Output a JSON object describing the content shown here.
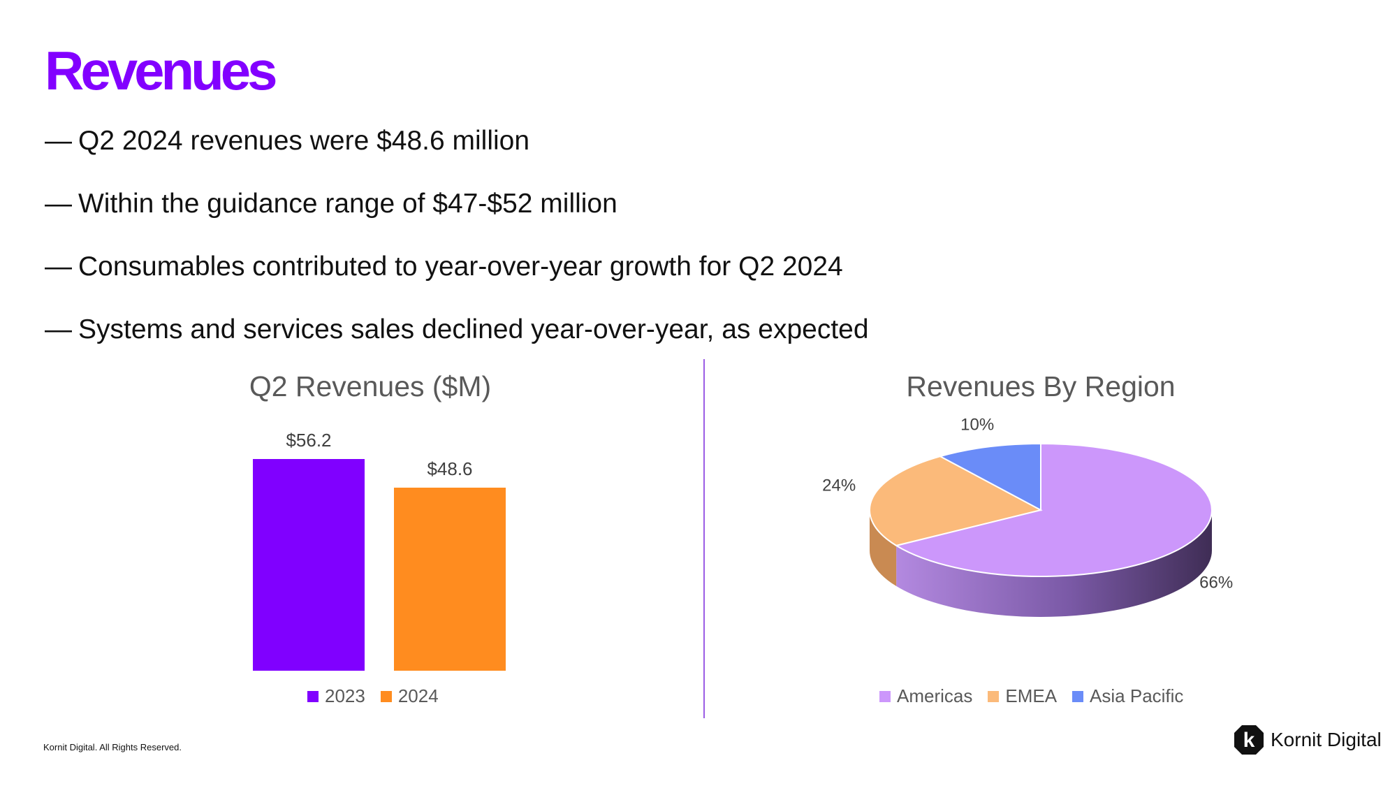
{
  "slide": {
    "title": "Revenues",
    "bullets": [
      "Q2 2024 revenues were $48.6 million",
      "Within the guidance range of $47-$52 million",
      "Consumables contributed to year-over-year growth for Q2 2024",
      "Systems and services sales declined year-over-year, as expected"
    ],
    "bullet_marker": "—",
    "footer": "Kornit Digital. All Rights Reserved.",
    "logo_text": "Kornit Digital",
    "logo_mark": "k"
  },
  "colors": {
    "title": "#8200ff",
    "divider": "#9b5de5",
    "bar_2023": "#8000ff",
    "bar_2024": "#ff8c1f",
    "americas": "#cc97fb",
    "emea": "#fbba7a",
    "asia_pacific": "#6a8cf8"
  },
  "chart_data": [
    {
      "type": "bar",
      "title": "Q2 Revenues ($M)",
      "categories": [
        "2023",
        "2024"
      ],
      "values": [
        56.2,
        48.6
      ],
      "data_labels": [
        "$56.2",
        "$48.6"
      ],
      "colors": [
        "#8000ff",
        "#ff8c1f"
      ],
      "legend": [
        "2023",
        "2024"
      ],
      "legend_position": "bottom",
      "ylim": [
        0,
        56.2
      ],
      "grid": false
    },
    {
      "type": "pie",
      "title": "Revenues By Region",
      "labels": [
        "Americas",
        "EMEA",
        "Asia Pacific"
      ],
      "values": [
        66,
        24,
        10
      ],
      "data_labels": [
        "66%",
        "24%",
        "10%"
      ],
      "colors": [
        "#cc97fb",
        "#fbba7a",
        "#6a8cf8"
      ],
      "legend_position": "bottom",
      "style": "3d"
    }
  ]
}
